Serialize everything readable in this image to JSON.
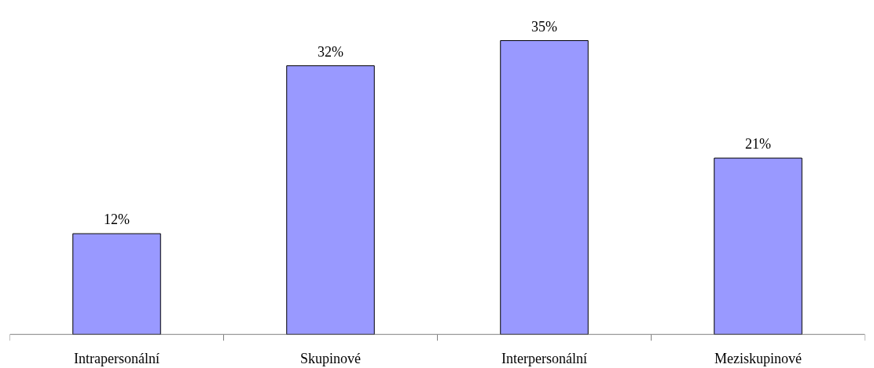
{
  "chart_data": {
    "type": "bar",
    "categories": [
      "Intrapersonální",
      "Skupinové",
      "Interpersonální",
      "Meziskupinové"
    ],
    "values": [
      12,
      32,
      35,
      21
    ],
    "value_labels": [
      "12%",
      "32%",
      "35%",
      "21%"
    ],
    "color": "#9999ff"
  }
}
